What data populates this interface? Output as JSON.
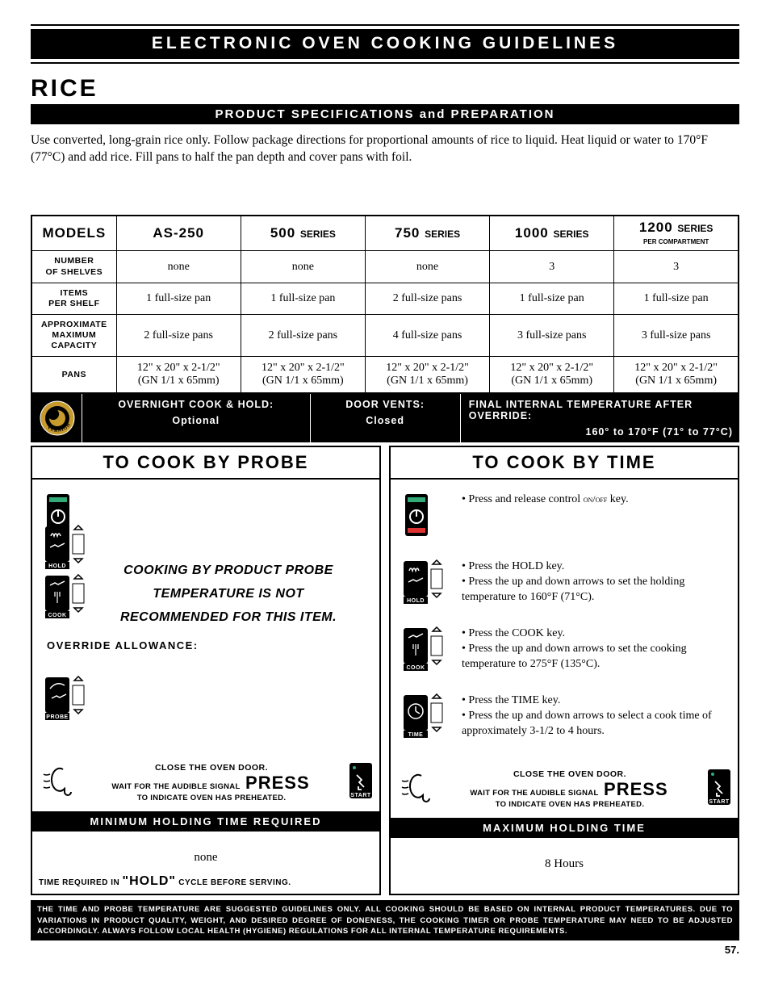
{
  "page": {
    "header_title": "ELECTRONIC OVEN COOKING GUIDELINES",
    "food_title": "RICE",
    "spec_banner": "PRODUCT SPECIFICATIONS and PREPARATION",
    "blurb": "Use converted, long-grain rice only.  Follow package directions for proportional amounts of rice to liquid.  Heat liquid or water to 170°F (77°C) and add rice.  Fill pans to half the pan depth and cover pans with foil.",
    "page_number": "57."
  },
  "spec_table": {
    "col_header_label": "MODELS",
    "columns": [
      "AS-250",
      "500 SERIES",
      "750 SERIES",
      "1000 SERIES",
      "1200 SERIES"
    ],
    "col5_sub": "PER COMPARTMENT",
    "rows": [
      {
        "label": "NUMBER\nOF SHELVES",
        "cells": [
          "none",
          "none",
          "none",
          "3",
          "3"
        ]
      },
      {
        "label": "ITEMS\nPER SHELF",
        "cells": [
          "1 full-size pan",
          "1 full-size pan",
          "2 full-size pans",
          "1 full-size pan",
          "1 full-size pan"
        ]
      },
      {
        "label": "APPROXIMATE\nMAXIMUM\nCAPACITY",
        "cells": [
          "2 full-size pans",
          "2 full-size pans",
          "4 full-size pans",
          "3 full-size pans",
          "3 full-size pans"
        ]
      },
      {
        "label": "PANS",
        "cells": [
          "12\" x 20\" x 2-1/2\"\n(GN 1/1 x 65mm)",
          "12\" x 20\" x 2-1/2\"\n(GN 1/1 x 65mm)",
          "12\" x 20\" x 2-1/2\"\n(GN 1/1 x 65mm)",
          "12\" x 20\" x 2-1/2\"\n(GN 1/1 x 65mm)",
          "12\" x 20\" x 2-1/2\"\n(GN 1/1 x 65mm)"
        ]
      }
    ]
  },
  "info_bar": {
    "badge_text": "OVERNIGHT",
    "c1_title": "OVERNIGHT COOK & HOLD:",
    "c1_value": "Optional",
    "c2_title": "DOOR VENTS:",
    "c2_value": "Closed",
    "c3_title": "FINAL INTERNAL TEMPERATURE AFTER OVERRIDE:",
    "c3_value": "160° to 170°F (71° to 77°C)"
  },
  "methods": {
    "probe": {
      "header": "TO COOK BY PROBE",
      "not_recommended": "COOKING BY PRODUCT PROBE\nTEMPERATURE IS NOT\nRECOMMENDED FOR THIS ITEM.",
      "override_label": "OVERRIDE ALLOWANCE:",
      "min_hold_banner": "MINIMUM HOLDING TIME REQUIRED",
      "min_hold_value": "none",
      "hold_note_pre": "TIME REQUIRED IN ",
      "hold_note_big": "\"HOLD\"",
      "hold_note_post": " CYCLE BEFORE SERVING."
    },
    "time": {
      "header": "TO COOK BY TIME",
      "step1": "Press and release control ON/OFF key.",
      "step2a": "Press the HOLD key.",
      "step2b": "Press the up and down arrows to set the holding temperature to 160°F (71°C).",
      "step3a": "Press the COOK key.",
      "step3b": "Press the up and down arrows to set the cooking temperature to 275°F (135°C).",
      "step4a": "Press the TIME key.",
      "step4b": "Press the up and down arrows to select a cook time of approximately 3-1/2 to 4 hours.",
      "max_hold_banner": "MAXIMUM HOLDING TIME",
      "max_hold_value": "8 Hours"
    },
    "close_door": {
      "line1": "CLOSE THE OVEN DOOR.",
      "line2a": "WAIT FOR THE AUDIBLE SIGNAL",
      "press": "PRESS",
      "line2b": "TO INDICATE OVEN HAS PREHEATED."
    }
  },
  "icons": {
    "hold_label": "HOLD",
    "cook_label": "COOK",
    "probe_label": "PROBE",
    "time_label": "TIME",
    "start_label": "START"
  },
  "disclaimer": "THE TIME AND PROBE TEMPERATURE ARE SUGGESTED GUIDELINES ONLY.  ALL COOKING SHOULD BE BASED ON INTERNAL PRODUCT TEMPERATURES.  DUE TO VARIATIONS IN PRODUCT QUALITY, WEIGHT, AND DESIRED DEGREE OF DONENESS, THE COOKING TIMER OR PROBE TEMPERATURE MAY NEED TO BE ADJUSTED ACCORDINGLY.  ALWAYS FOLLOW LOCAL HEALTH (HYGIENE) REGULATIONS FOR ALL INTERNAL TEMPERATURE REQUIREMENTS.",
  "colors": {
    "black": "#000000",
    "white": "#ffffff"
  }
}
